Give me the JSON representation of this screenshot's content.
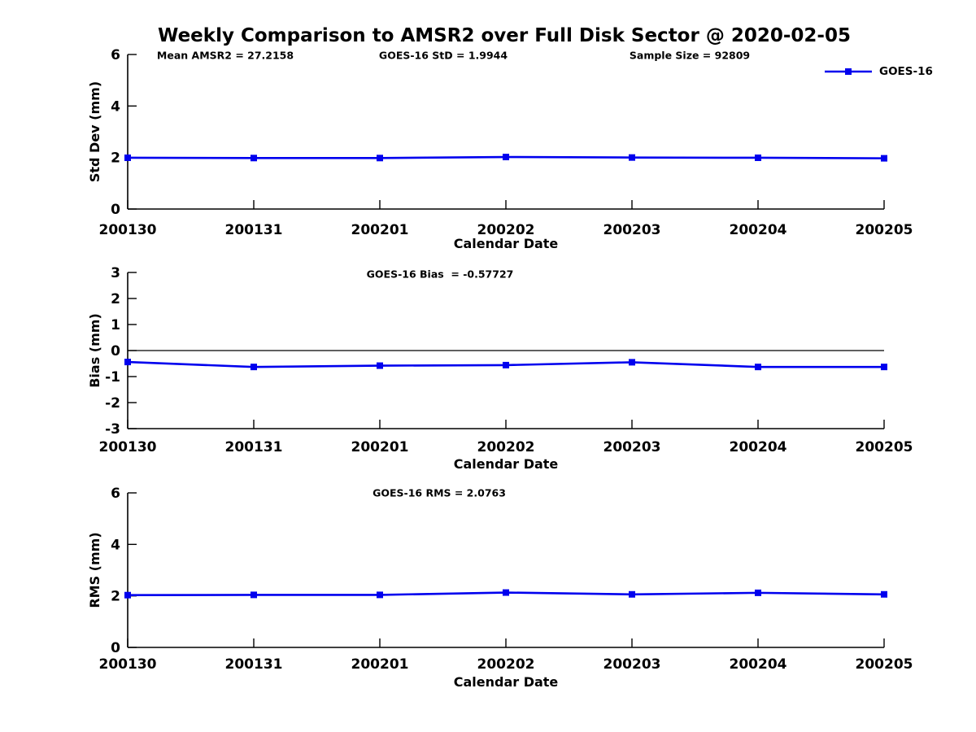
{
  "figure": {
    "title": "Weekly Comparison to AMSR2 over Full Disk Sector @ 2020-02-05",
    "background_color": "#ffffff",
    "series_color": "#0000ee",
    "axis_color": "#000000",
    "legend": {
      "label": "GOES-16",
      "position": "top-right"
    }
  },
  "annotations": {
    "mean_amsr2": "Mean AMSR2 = 27.2158",
    "goes16_std": "GOES-16 StD = 1.9944",
    "sample_size": "Sample Size = 92809",
    "goes16_bias": "GOES-16 Bias  = -0.57727",
    "goes16_rms": "GOES-16 RMS = 2.0763"
  },
  "chart_data": [
    {
      "type": "line",
      "title": "",
      "annotations": [
        "Mean AMSR2 = 27.2158",
        "GOES-16 StD = 1.9944",
        "Sample Size = 92809"
      ],
      "xlabel": "Calendar Date",
      "ylabel": "Std Dev (mm)",
      "categories": [
        "200130",
        "200131",
        "200201",
        "200202",
        "200203",
        "200204",
        "200205"
      ],
      "series": [
        {
          "name": "GOES-16",
          "values": [
            1.99,
            1.98,
            1.98,
            2.02,
            2.0,
            1.99,
            1.97
          ]
        }
      ],
      "ylim": [
        0,
        6
      ],
      "yticks": [
        0,
        2,
        4,
        6
      ],
      "grid": false,
      "zero_line": false,
      "legend_position": "top-right"
    },
    {
      "type": "line",
      "title": "GOES-16 Bias  = -0.57727",
      "xlabel": "Calendar Date",
      "ylabel": "Bias (mm)",
      "categories": [
        "200130",
        "200131",
        "200201",
        "200202",
        "200203",
        "200204",
        "200205"
      ],
      "series": [
        {
          "name": "GOES-16",
          "values": [
            -0.44,
            -0.63,
            -0.58,
            -0.56,
            -0.45,
            -0.63,
            -0.63
          ]
        }
      ],
      "ylim": [
        -3,
        3
      ],
      "yticks": [
        -3,
        -2,
        -1,
        0,
        1,
        2,
        3
      ],
      "grid": false,
      "zero_line": true,
      "legend_position": "none"
    },
    {
      "type": "line",
      "title": "GOES-16 RMS = 2.0763",
      "xlabel": "Calendar Date",
      "ylabel": "RMS (mm)",
      "categories": [
        "200130",
        "200131",
        "200201",
        "200202",
        "200203",
        "200204",
        "200205"
      ],
      "series": [
        {
          "name": "GOES-16",
          "values": [
            2.03,
            2.04,
            2.04,
            2.13,
            2.06,
            2.12,
            2.06
          ]
        }
      ],
      "ylim": [
        0,
        6
      ],
      "yticks": [
        0,
        2,
        4,
        6
      ],
      "grid": false,
      "zero_line": false,
      "legend_position": "none"
    }
  ]
}
